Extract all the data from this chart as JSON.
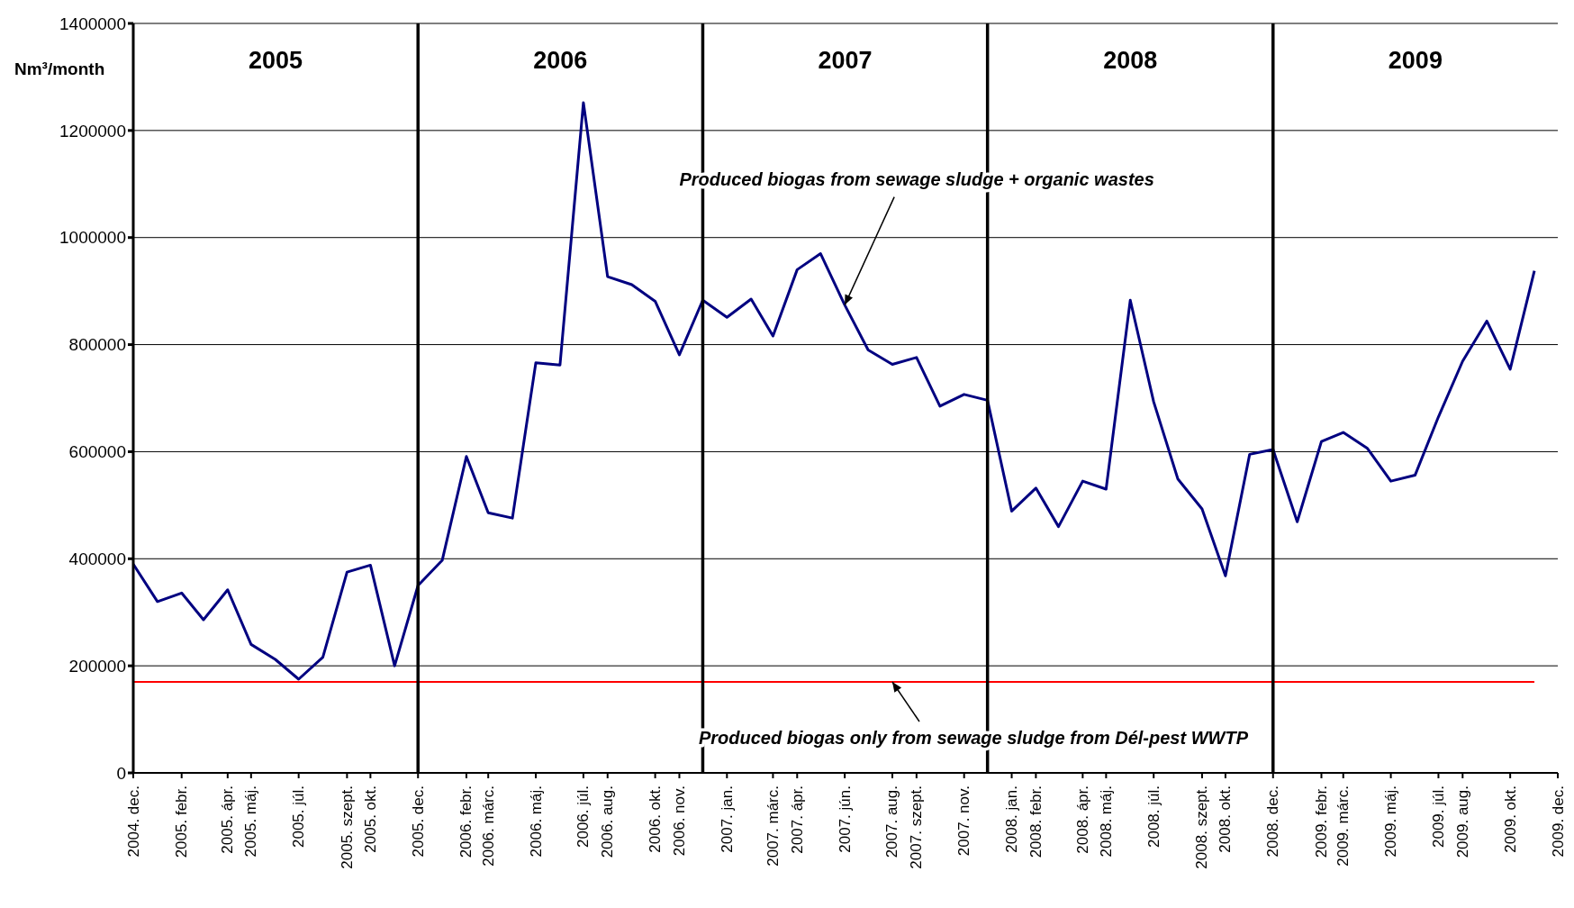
{
  "chart_data": {
    "type": "line",
    "ylabel": "Nm³/month",
    "x": [
      "2004-12",
      "2005-01",
      "2005-02",
      "2005-03",
      "2005-04",
      "2005-05",
      "2005-06",
      "2005-07",
      "2005-08",
      "2005-09",
      "2005-10",
      "2005-11",
      "2005-12",
      "2006-01",
      "2006-02",
      "2006-03",
      "2006-04",
      "2006-05",
      "2006-06",
      "2006-07",
      "2006-08",
      "2006-09",
      "2006-10",
      "2006-11",
      "2006-12",
      "2007-01",
      "2007-02",
      "2007-03",
      "2007-04",
      "2007-05",
      "2007-06",
      "2007-07",
      "2007-08",
      "2007-09",
      "2007-10",
      "2007-11",
      "2007-12",
      "2008-01",
      "2008-02",
      "2008-03",
      "2008-04",
      "2008-05",
      "2008-06",
      "2008-07",
      "2008-08",
      "2008-09",
      "2008-10",
      "2008-11",
      "2008-12",
      "2009-01",
      "2009-02",
      "2009-03",
      "2009-04",
      "2009-05",
      "2009-06",
      "2009-07",
      "2009-08",
      "2009-09",
      "2009-10",
      "2009-11"
    ],
    "series": [
      {
        "color": "#000080",
        "values": [
          390000,
          320000,
          336000,
          286000,
          342000,
          240000,
          212000,
          175000,
          216000,
          375000,
          388000,
          200000,
          350000,
          397000,
          591000,
          486000,
          476000,
          766000,
          762000,
          1252000,
          927000,
          912000,
          881000,
          781000,
          883000,
          851000,
          885000,
          816000,
          940000,
          970000,
          874000,
          790000,
          763000,
          776000,
          685000,
          707000,
          696000,
          489000,
          532000,
          460000,
          545000,
          530000,
          883000,
          693000,
          549000,
          493000,
          368000,
          595000,
          604000,
          469000,
          619000,
          636000,
          606000,
          545000,
          556000,
          665000,
          769000,
          844000,
          754000,
          938000
        ]
      },
      {
        "color": "#ff0000",
        "values": [
          170000,
          170000,
          170000,
          170000,
          170000,
          170000,
          170000,
          170000,
          170000,
          170000,
          170000,
          170000,
          170000,
          170000,
          170000,
          170000,
          170000,
          170000,
          170000,
          170000,
          170000,
          170000,
          170000,
          170000,
          170000,
          170000,
          170000,
          170000,
          170000,
          170000,
          170000,
          170000,
          170000,
          170000,
          170000,
          170000,
          170000,
          170000,
          170000,
          170000,
          170000,
          170000,
          170000,
          170000,
          170000,
          170000,
          170000,
          170000,
          170000,
          170000,
          170000,
          170000,
          170000,
          170000,
          170000,
          170000,
          170000,
          170000,
          170000,
          170000
        ]
      }
    ],
    "xlim": [
      "2004-12",
      "2009-12"
    ],
    "xticks": [
      {
        "value": "2004-12",
        "label": "2004. dec."
      },
      {
        "value": "2005-02",
        "label": "2005. febr."
      },
      {
        "value": "2005-04",
        "label": "2005. ápr."
      },
      {
        "value": "2005-05",
        "label": "2005. máj."
      },
      {
        "value": "2005-07",
        "label": "2005. júl."
      },
      {
        "value": "2005-09",
        "label": "2005. szept."
      },
      {
        "value": "2005-10",
        "label": "2005. okt."
      },
      {
        "value": "2005-12",
        "label": "2005. dec."
      },
      {
        "value": "2006-02",
        "label": "2006. febr."
      },
      {
        "value": "2006-03",
        "label": "2006. márc."
      },
      {
        "value": "2006-05",
        "label": "2006. máj."
      },
      {
        "value": "2006-07",
        "label": "2006. júl."
      },
      {
        "value": "2006-08",
        "label": "2006. aug."
      },
      {
        "value": "2006-10",
        "label": "2006. okt."
      },
      {
        "value": "2006-11",
        "label": "2006. nov."
      },
      {
        "value": "2007-01",
        "label": "2007. jan."
      },
      {
        "value": "2007-03",
        "label": "2007. márc."
      },
      {
        "value": "2007-04",
        "label": "2007. ápr."
      },
      {
        "value": "2007-06",
        "label": "2007. jún."
      },
      {
        "value": "2007-08",
        "label": "2007. aug."
      },
      {
        "value": "2007-09",
        "label": "2007. szept."
      },
      {
        "value": "2007-11",
        "label": "2007. nov."
      },
      {
        "value": "2008-01",
        "label": "2008. jan."
      },
      {
        "value": "2008-02",
        "label": "2008. febr."
      },
      {
        "value": "2008-04",
        "label": "2008. ápr."
      },
      {
        "value": "2008-05",
        "label": "2008. máj."
      },
      {
        "value": "2008-07",
        "label": "2008. júl."
      },
      {
        "value": "2008-09",
        "label": "2008. szept."
      },
      {
        "value": "2008-10",
        "label": "2008. okt."
      },
      {
        "value": "2008-12",
        "label": "2008. dec."
      },
      {
        "value": "2009-02",
        "label": "2009. febr."
      },
      {
        "value": "2009-03",
        "label": "2009. márc."
      },
      {
        "value": "2009-05",
        "label": "2009. máj."
      },
      {
        "value": "2009-07",
        "label": "2009. júl."
      },
      {
        "value": "2009-08",
        "label": "2009. aug."
      },
      {
        "value": "2009-10",
        "label": "2009. okt."
      },
      {
        "value": "2009-12",
        "label": "2009. dec."
      }
    ],
    "ylim": [
      0,
      1400000
    ],
    "yticks": [
      0,
      200000,
      400000,
      600000,
      800000,
      1000000,
      1200000,
      1400000
    ],
    "grid": "y",
    "legend": false,
    "marker": "none",
    "line_style": "solid",
    "ref_lines": [
      {
        "axis": "x",
        "value": "2005-12",
        "color": "#000000"
      },
      {
        "axis": "x",
        "value": "2006-12",
        "color": "#000000"
      },
      {
        "axis": "x",
        "value": "2007-12",
        "color": "#000000"
      },
      {
        "axis": "x",
        "value": "2008-12",
        "color": "#000000"
      }
    ],
    "annotations": [
      "2005",
      "2006",
      "2007",
      "2008",
      "2009",
      {
        "text": "Produced biogas from sewage sludge + organic wastes",
        "x": "2007-06",
        "y": 874000
      },
      {
        "text": "Produced biogas only from sewage sludge from Dél-pest WWTP",
        "x": "2007-08",
        "y": 170000
      }
    ]
  }
}
